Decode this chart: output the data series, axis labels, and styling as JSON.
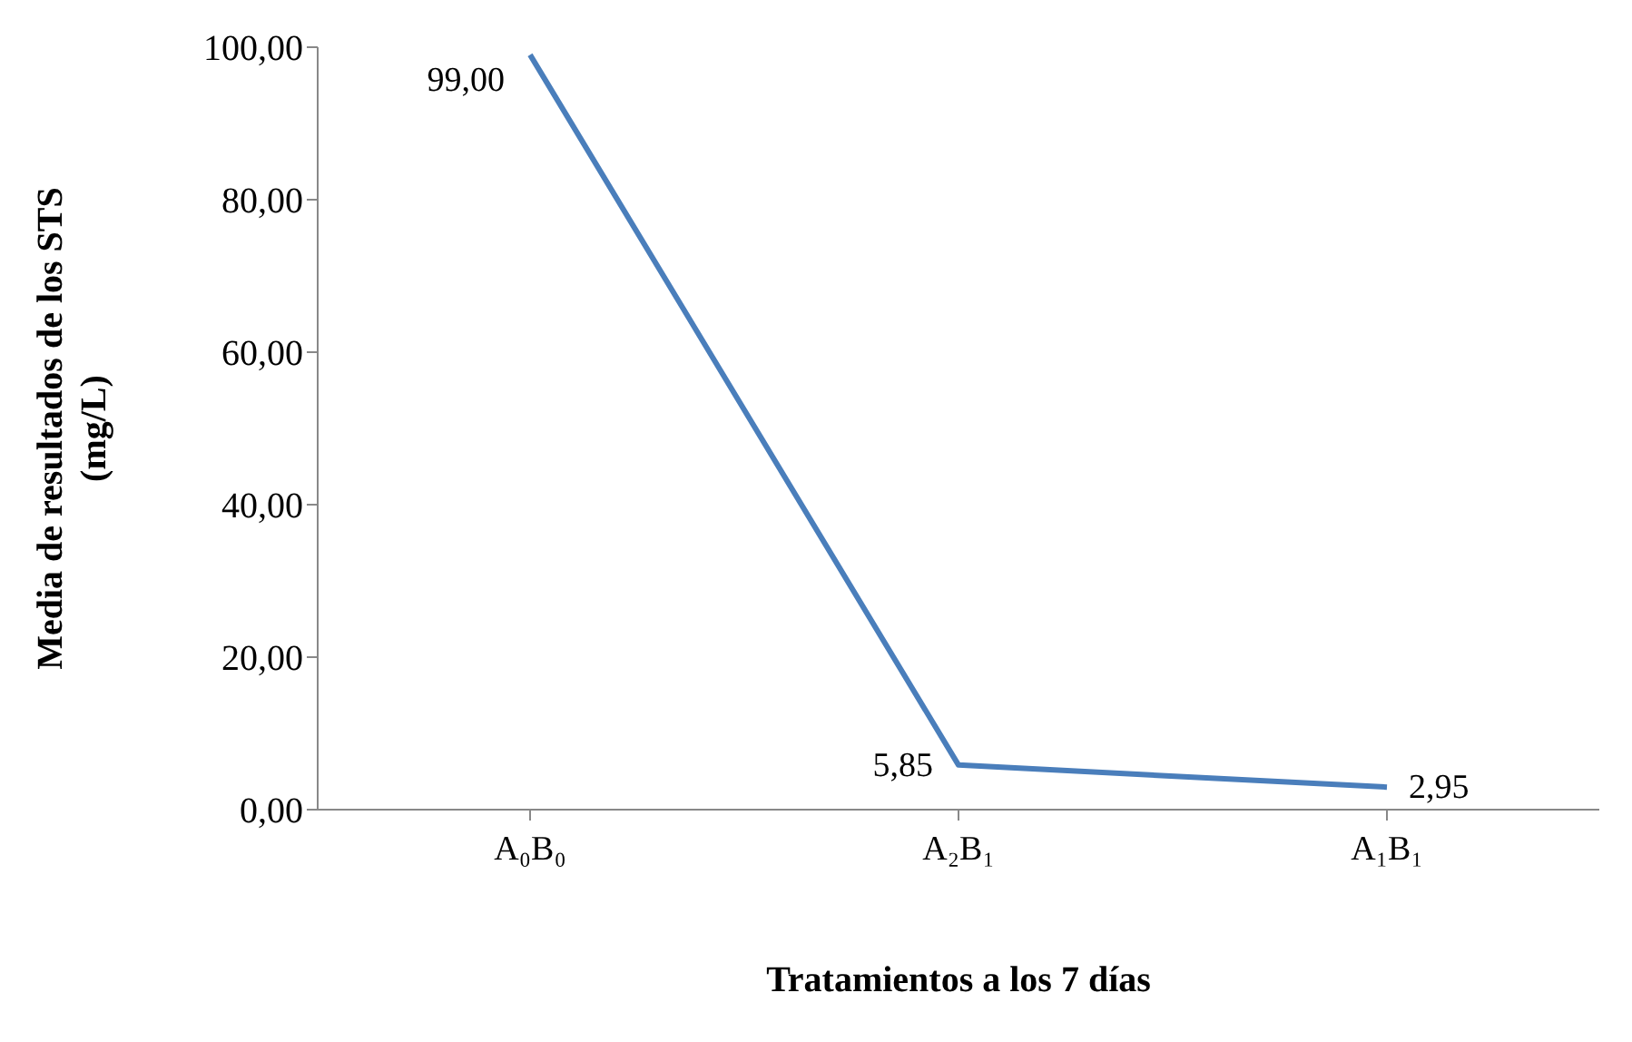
{
  "chart_data": {
    "type": "line",
    "xlabel": "Tratamientos a los 7 días",
    "ylabel": "Media de resultados de los STS (mg/L)",
    "categories": [
      "A₀B₀",
      "A₂B₁",
      "A₁B₁"
    ],
    "series": [
      {
        "color": "#4a7ebb",
        "values": [
          99.0,
          5.85,
          2.95
        ],
        "value_labels": [
          "99,00",
          "5,85",
          "2,95"
        ]
      }
    ],
    "ylim": [
      0,
      100
    ],
    "yticks": [
      {
        "value": 0,
        "label": "0,00"
      },
      {
        "value": 20,
        "label": "20,00"
      },
      {
        "value": 40,
        "label": "40,00"
      },
      {
        "value": 60,
        "label": "60,00"
      },
      {
        "value": 80,
        "label": "80,00"
      },
      {
        "value": 100,
        "label": "100,00"
      }
    ],
    "marker": "none",
    "line_style": "solid"
  }
}
